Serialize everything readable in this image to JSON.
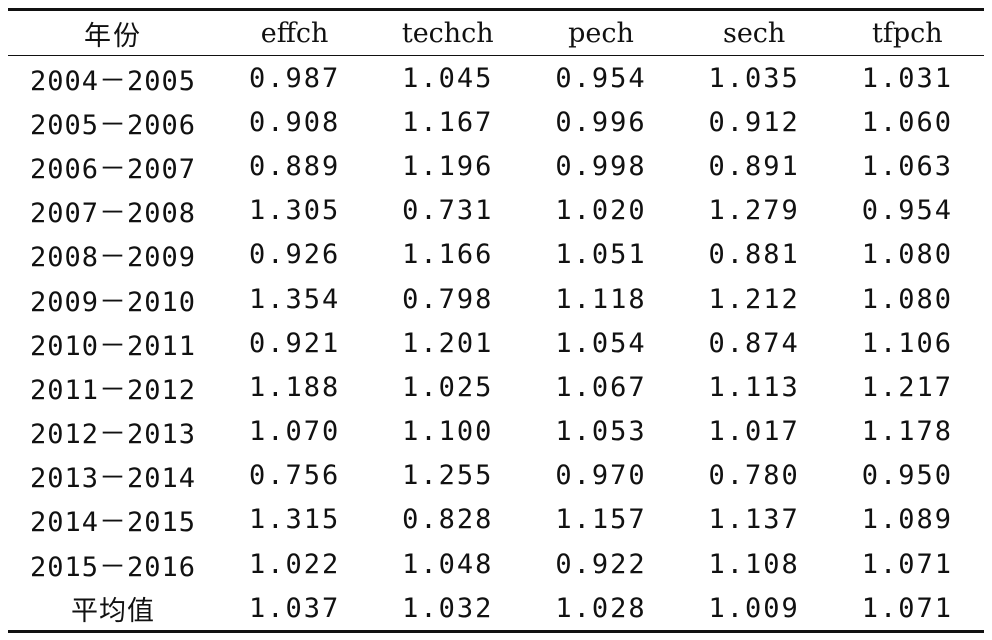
{
  "table": {
    "headers": [
      "年份",
      "effch",
      "techch",
      "pech",
      "sech",
      "tfpch"
    ],
    "rows": [
      [
        "2004－2005",
        "0.987",
        "1.045",
        "0.954",
        "1.035",
        "1.031"
      ],
      [
        "2005－2006",
        "0.908",
        "1.167",
        "0.996",
        "0.912",
        "1.060"
      ],
      [
        "2006－2007",
        "0.889",
        "1.196",
        "0.998",
        "0.891",
        "1.063"
      ],
      [
        "2007－2008",
        "1.305",
        "0.731",
        "1.020",
        "1.279",
        "0.954"
      ],
      [
        "2008－2009",
        "0.926",
        "1.166",
        "1.051",
        "0.881",
        "1.080"
      ],
      [
        "2009－2010",
        "1.354",
        "0.798",
        "1.118",
        "1.212",
        "1.080"
      ],
      [
        "2010－2011",
        "0.921",
        "1.201",
        "1.054",
        "0.874",
        "1.106"
      ],
      [
        "2011－2012",
        "1.188",
        "1.025",
        "1.067",
        "1.113",
        "1.217"
      ],
      [
        "2012－2013",
        "1.070",
        "1.100",
        "1.053",
        "1.017",
        "1.178"
      ],
      [
        "2013－2014",
        "0.756",
        "1.255",
        "0.970",
        "0.780",
        "0.950"
      ],
      [
        "2014－2015",
        "1.315",
        "0.828",
        "1.157",
        "1.137",
        "1.089"
      ],
      [
        "2015－2016",
        "1.022",
        "1.048",
        "0.922",
        "1.108",
        "1.071"
      ],
      [
        "平均值",
        "1.037",
        "1.032",
        "1.028",
        "1.009",
        "1.071"
      ]
    ]
  }
}
